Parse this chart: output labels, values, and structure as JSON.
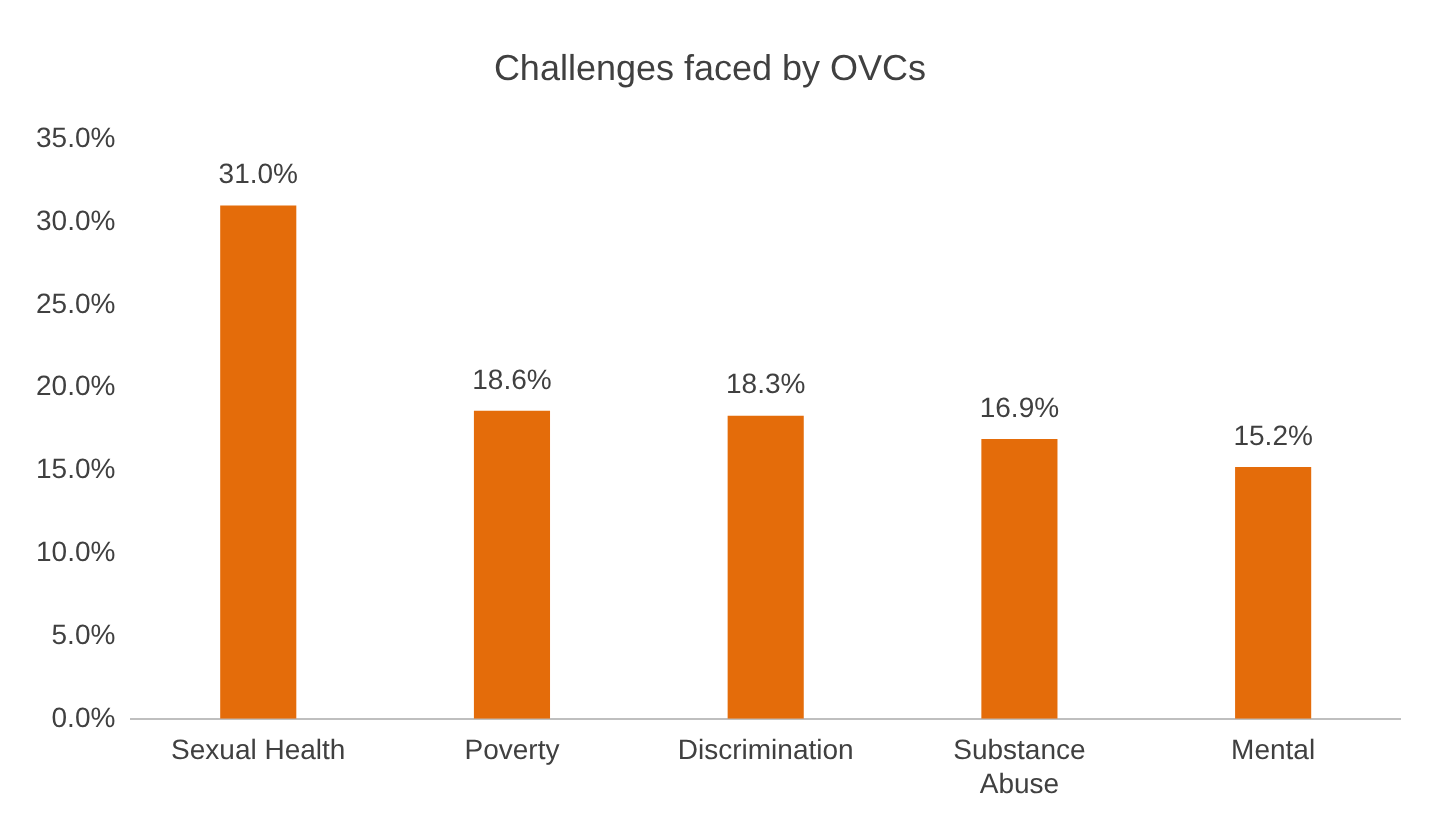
{
  "chart_data": {
    "type": "bar",
    "title": "Challenges faced by OVCs",
    "categories": [
      "Sexual Health",
      "Poverty",
      "Discrimination",
      "Substance Abuse",
      "Mental"
    ],
    "values": [
      31.0,
      18.6,
      18.3,
      16.9,
      15.2
    ],
    "value_labels": [
      "31.0%",
      "18.6%",
      "18.3%",
      "16.9%",
      "15.2%"
    ],
    "color": "#e46c0a",
    "ylim": [
      0,
      35
    ],
    "yticks": [
      {
        "value": 0,
        "label": "0.0%"
      },
      {
        "value": 5,
        "label": "5.0%"
      },
      {
        "value": 10,
        "label": "10.0%"
      },
      {
        "value": 15,
        "label": "15.0%"
      },
      {
        "value": 20,
        "label": "20.0%"
      },
      {
        "value": 25,
        "label": "25.0%"
      },
      {
        "value": 30,
        "label": "30.0%"
      },
      {
        "value": 35,
        "label": "35.0%"
      }
    ],
    "grid": false,
    "legend": false
  }
}
